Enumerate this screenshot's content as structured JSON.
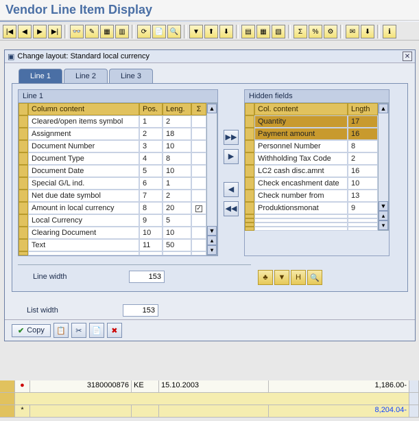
{
  "title": "Vendor Line Item Display",
  "dialog": {
    "title": "Change layout: Standard local currency",
    "tabs": [
      "Line 1",
      "Line 2",
      "Line 3"
    ],
    "active_tab": "Line 1",
    "left": {
      "title": "Line 1",
      "headers": {
        "col": "Column content",
        "pos": "Pos.",
        "len": "Leng.",
        "sig": "Σ"
      },
      "rows": [
        {
          "col": "Cleared/open items symbol",
          "pos": "1",
          "len": "2",
          "sig": false
        },
        {
          "col": "Assignment",
          "pos": "2",
          "len": "18",
          "sig": false
        },
        {
          "col": "Document Number",
          "pos": "3",
          "len": "10",
          "sig": false
        },
        {
          "col": "Document Type",
          "pos": "4",
          "len": "8",
          "sig": false
        },
        {
          "col": "Document Date",
          "pos": "5",
          "len": "10",
          "sig": false
        },
        {
          "col": "Special G/L ind.",
          "pos": "6",
          "len": "1",
          "sig": false
        },
        {
          "col": "Net due date symbol",
          "pos": "7",
          "len": "2",
          "sig": false
        },
        {
          "col": "Amount in local currency",
          "pos": "8",
          "len": "20",
          "sig": true
        },
        {
          "col": "Local Currency",
          "pos": "9",
          "len": "5",
          "sig": false
        },
        {
          "col": "Clearing Document",
          "pos": "10",
          "len": "10",
          "sig": false
        },
        {
          "col": "Text",
          "pos": "11",
          "len": "50",
          "sig": false
        }
      ]
    },
    "right": {
      "title": "Hidden fields",
      "headers": {
        "col": "Col. content",
        "len": "Lngth"
      },
      "rows": [
        {
          "col": "Quantity",
          "len": "17",
          "sel": true
        },
        {
          "col": "Payment amount",
          "len": "16",
          "sel": true
        },
        {
          "col": "Personnel Number",
          "len": "8",
          "sel": false
        },
        {
          "col": "Withholding Tax Code",
          "len": "2",
          "sel": false
        },
        {
          "col": "LC2 cash disc.amnt",
          "len": "16",
          "sel": false
        },
        {
          "col": "Check encashment date",
          "len": "10",
          "sel": false
        },
        {
          "col": "Check number from",
          "len": "13",
          "sel": false
        },
        {
          "col": "Produktionsmonat",
          "len": "9",
          "sel": false
        }
      ]
    },
    "line_width_label": "Line width",
    "line_width": "153",
    "list_width_label": "List width",
    "list_width": "153",
    "copy_label": "Copy"
  },
  "underlay": {
    "row1": {
      "c1": "3180000876",
      "c2": "KE",
      "c3": "15.10.2003",
      "c4": "1,186.00-"
    },
    "row3": {
      "c1": "*",
      "c4": "8,204.04-"
    }
  }
}
